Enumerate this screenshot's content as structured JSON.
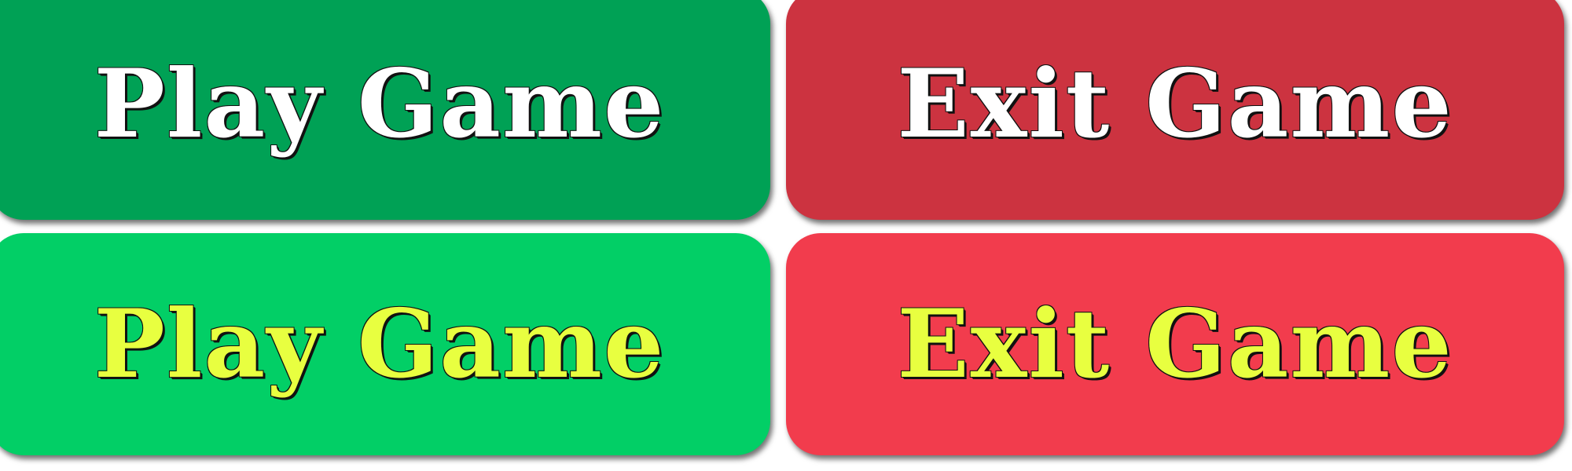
{
  "buttons": {
    "play_normal": {
      "label": "Play Game",
      "bg": "#00a155",
      "text_color": "#ffffff"
    },
    "exit_normal": {
      "label": "Exit Game",
      "bg": "#cc3340",
      "text_color": "#ffffff"
    },
    "play_hover": {
      "label": "Play Game",
      "bg": "#02cf66",
      "text_color": "#e8ff40"
    },
    "exit_hover": {
      "label": "Exit Game",
      "bg": "#f23c4d",
      "text_color": "#e8ff40"
    }
  }
}
